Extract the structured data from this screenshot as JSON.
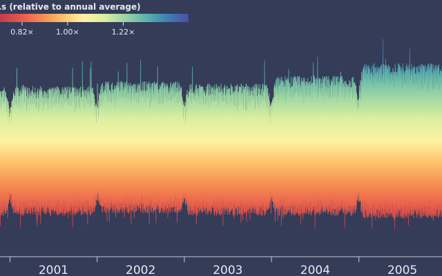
{
  "chart_data": {
    "type": "bar",
    "title": "",
    "xlabel": "",
    "ylabel": "",
    "x_tick_labels": [
      "2001",
      "2002",
      "2003",
      "2004",
      "2005"
    ],
    "x_range": [
      "2000-01-01",
      "2005-12-31"
    ],
    "visible_window": [
      "2000-11-20",
      "2005-12-15"
    ],
    "grid": false,
    "background_color": "#343c58",
    "axis_color": "#c8ccd8",
    "bar_style": "range bars per day (low to high), colored by gradient",
    "colorscale": [
      "#c53a4a",
      "#e8584a",
      "#f58b52",
      "#fcc16a",
      "#fef3a4",
      "#d9ef9f",
      "#99d5a4",
      "#5ab2b0",
      "#3d7fb4",
      "#4b4ea6"
    ],
    "legend": {
      "title": "…s (relative to annual average)",
      "placement": "top-left",
      "ticks": [
        {
          "label": "0.82×",
          "value": 0.82
        },
        {
          "label": "1.00×",
          "value": 1.0
        },
        {
          "label": "1.22×",
          "value": 1.22
        }
      ],
      "range": [
        0.7,
        1.5
      ]
    },
    "series": [
      {
        "low_typical": 0.78,
        "high_typical": 1.28,
        "low_min": 0.7,
        "high_max": 1.5,
        "year_envelope": [
          {
            "year": 2001,
            "high": 1.27,
            "low": 0.76
          },
          {
            "year": 2002,
            "high": 1.29,
            "low": 0.77
          },
          {
            "year": 2003,
            "high": 1.28,
            "low": 0.76
          },
          {
            "year": 2004,
            "high": 1.31,
            "low": 0.76
          },
          {
            "year": 2005,
            "high": 1.36,
            "low": 0.75
          }
        ]
      }
    ]
  }
}
